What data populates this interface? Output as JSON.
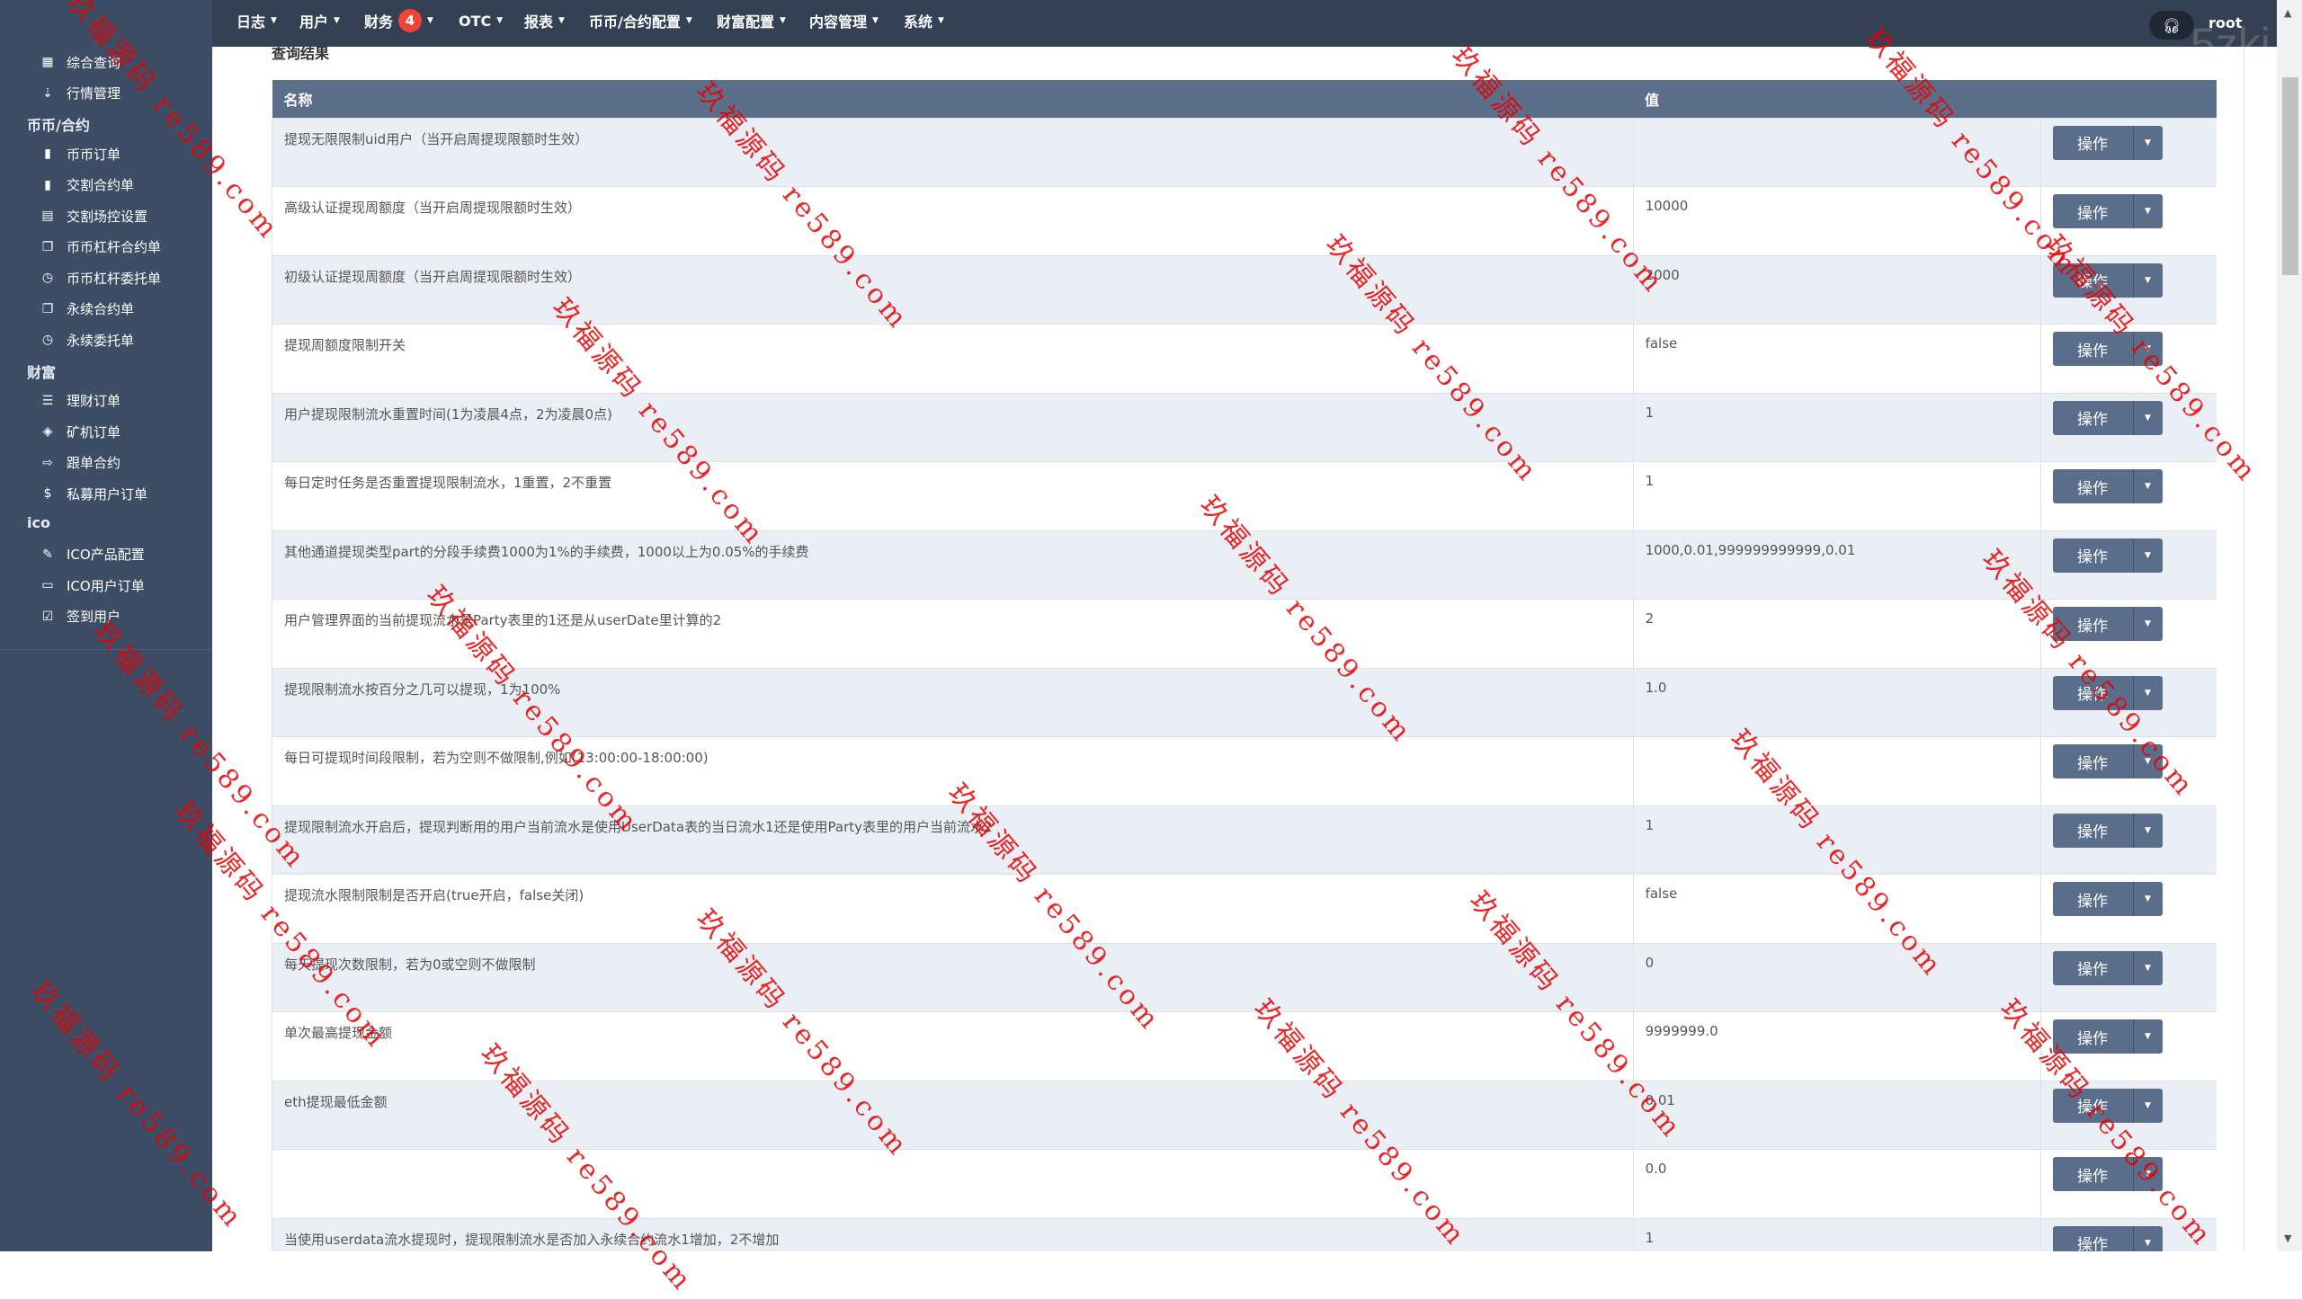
{
  "sidebar": {
    "items": [
      {
        "label": "综合查询",
        "icon": "grid-icon"
      },
      {
        "label": "行情管理",
        "icon": "sort-icon"
      },
      {
        "heading": "币币/合约"
      },
      {
        "label": "币币订单",
        "icon": "bookmark-icon"
      },
      {
        "label": "交割合约单",
        "icon": "bookmark-icon"
      },
      {
        "label": "交割场控设置",
        "icon": "clipboard-icon"
      },
      {
        "label": "币币杠杆合约单",
        "icon": "copy-icon"
      },
      {
        "label": "币币杠杆委托单",
        "icon": "calendar-clock-icon"
      },
      {
        "label": "永续合约单",
        "icon": "copy-icon"
      },
      {
        "label": "永续委托单",
        "icon": "calendar-clock-icon"
      },
      {
        "heading": "财富"
      },
      {
        "label": "理财订单",
        "icon": "database-icon"
      },
      {
        "label": "矿机订单",
        "icon": "layers-icon"
      },
      {
        "label": "跟单合约",
        "icon": "card-transfer-icon"
      },
      {
        "label": "私募用户订单",
        "icon": "dollar-icon"
      },
      {
        "heading": "ico"
      },
      {
        "label": "ICO产品配置",
        "icon": "edit-doc-icon"
      },
      {
        "label": "ICO用户订单",
        "icon": "monitor-icon"
      },
      {
        "label": "签到用户",
        "icon": "edit-square-icon"
      }
    ]
  },
  "topnav": {
    "items": [
      {
        "label": "日志"
      },
      {
        "label": "用户"
      },
      {
        "label": "财务",
        "badge": "4"
      },
      {
        "label": "OTC"
      },
      {
        "label": "报表"
      },
      {
        "label": "币币/合约配置"
      },
      {
        "label": "财富配置"
      },
      {
        "label": "内容管理"
      },
      {
        "label": "系统"
      }
    ],
    "user": "root",
    "corner_watermark": "5zki"
  },
  "main": {
    "section_title": "查询结果",
    "columns": [
      "名称",
      "值",
      ""
    ],
    "action_label": "操作",
    "rows": [
      {
        "name": "提现无限限制uid用户（当开启周提现限额时生效）",
        "value": ""
      },
      {
        "name": "高级认证提现周额度（当开启周提现限额时生效）",
        "value": "10000"
      },
      {
        "name": "初级认证提现周额度（当开启周提现限额时生效）",
        "value": "2000"
      },
      {
        "name": "提现周额度限制开关",
        "value": "false"
      },
      {
        "name": "用户提现限制流水重置时间(1为凌晨4点，2为凌晨0点)",
        "value": "1"
      },
      {
        "name": "每日定时任务是否重置提现限制流水，1重置，2不重置",
        "value": "1"
      },
      {
        "name": "其他通道提现类型part的分段手续费1000为1%的手续费，1000以上为0.05%的手续费",
        "value": "1000,0.01,999999999999,0.01"
      },
      {
        "name": "用户管理界面的当前提现流水是Party表里的1还是从userDate里计算的2",
        "value": "2"
      },
      {
        "name": "提现限制流水按百分之几可以提现，1为100%",
        "value": "1.0"
      },
      {
        "name": "每日可提现时间段限制，若为空则不做限制,例如(13:00:00-18:00:00)",
        "value": ""
      },
      {
        "name": "提现限制流水开启后，提现判断用的用户当前流水是使用UserData表的当日流水1还是使用Party表里的用户当前流水2",
        "value": "1"
      },
      {
        "name": "提现流水限制限制是否开启(true开启，false关闭)",
        "value": "false"
      },
      {
        "name": "每天提现次数限制，若为0或空则不做限制",
        "value": "0"
      },
      {
        "name": "单次最高提现金额",
        "value": "9999999.0"
      },
      {
        "name": "eth提现最低金额",
        "value": "0.01"
      },
      {
        "name": "",
        "value": "0.0"
      },
      {
        "name": "当使用userdata流水提现时，提现限制流水是否加入永续合约流水1增加，2不增加",
        "value": "1"
      }
    ]
  },
  "watermark": "玖福源码 re589.com",
  "colors": {
    "sidebar": "#3d4d65",
    "topbar": "#344155",
    "table_header": "#5c6f8a",
    "stripe": "#eaeff6",
    "button": "#5a6e8c",
    "badge": "#f0443a"
  }
}
